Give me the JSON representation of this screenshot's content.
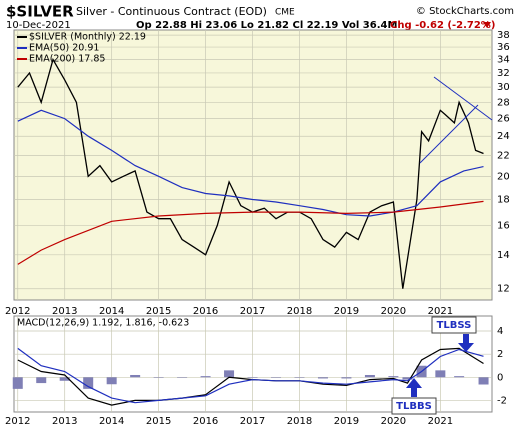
{
  "chart_data": [
    {
      "type": "line",
      "title": "$SILVER",
      "subtitle": "Silver - Continuous Contract (EOD)",
      "exchange": "CME",
      "date": "10-Dec-2021",
      "quote": "Op 22.88 Hi 23.06 Lo 21.82 Cl 22.19 Vol 36.4M",
      "change": "Chg -0.62 (-2.72%)",
      "source": "© StockCharts.com",
      "log_scale": true,
      "grid": true,
      "background": "#f7f7da",
      "xlim": [
        2011.92,
        2022.1
      ],
      "xticks": [
        2012,
        2013,
        2014,
        2015,
        2016,
        2017,
        2018,
        2019,
        2020,
        2021
      ],
      "ylim": [
        11.4,
        38.9
      ],
      "yticks": [
        12,
        14,
        16,
        18,
        20,
        22,
        24,
        26,
        28,
        30,
        32,
        34,
        36,
        38
      ],
      "series": [
        {
          "name": "$SILVER (Monthly) 22.19",
          "color": "#000000",
          "x": [
            2012.0,
            2012.25,
            2012.5,
            2012.75,
            2013.0,
            2013.25,
            2013.5,
            2013.75,
            2014.0,
            2014.25,
            2014.5,
            2014.75,
            2015.0,
            2015.25,
            2015.5,
            2015.75,
            2016.0,
            2016.25,
            2016.5,
            2016.75,
            2017.0,
            2017.25,
            2017.5,
            2017.75,
            2018.0,
            2018.25,
            2018.5,
            2018.75,
            2019.0,
            2019.25,
            2019.5,
            2019.75,
            2020.0,
            2020.2,
            2020.5,
            2020.6,
            2020.75,
            2021.0,
            2021.1,
            2021.3,
            2021.4,
            2021.6,
            2021.75,
            2021.92
          ],
          "values": [
            30,
            32,
            28,
            34,
            31,
            28,
            20,
            21,
            19.5,
            20,
            20.5,
            17,
            16.5,
            16.5,
            15,
            14.5,
            14,
            16,
            19.5,
            17.5,
            17,
            17.3,
            16.5,
            17,
            17,
            16.5,
            15,
            14.5,
            15.5,
            15,
            17,
            17.5,
            17.8,
            12,
            18,
            24.5,
            23.5,
            27,
            26.5,
            25.5,
            28,
            25.5,
            22.5,
            22.19
          ]
        },
        {
          "name": "EMA(50) 20.91",
          "color": "#1f2fbf",
          "x": [
            2012.0,
            2012.5,
            2013.0,
            2013.5,
            2014.0,
            2014.5,
            2015.0,
            2015.5,
            2016.0,
            2016.5,
            2017.0,
            2017.5,
            2018.0,
            2018.5,
            2019.0,
            2019.5,
            2020.0,
            2020.5,
            2021.0,
            2021.5,
            2021.92
          ],
          "values": [
            25.7,
            27,
            26,
            24,
            22.5,
            21,
            20,
            19,
            18.5,
            18.3,
            18,
            17.8,
            17.5,
            17.2,
            16.8,
            16.7,
            17,
            17.5,
            19.5,
            20.5,
            20.91
          ]
        },
        {
          "name": "EMA(200) 17.85",
          "color": "#c00000",
          "x": [
            2012.0,
            2012.5,
            2013.0,
            2014.0,
            2015.0,
            2016.0,
            2017.0,
            2018.0,
            2019.0,
            2020.0,
            2021.0,
            2021.92
          ],
          "values": [
            13.4,
            14.3,
            15,
            16.3,
            16.7,
            16.9,
            17,
            17,
            16.9,
            17,
            17.4,
            17.85
          ]
        }
      ]
    },
    {
      "type": "line",
      "title": "MACD(12,26,9) 1.192, 1.816, -0.623",
      "grid": true,
      "background": "#ffffff",
      "xlim": [
        2011.92,
        2022.1
      ],
      "xticks": [
        2012,
        2013,
        2014,
        2015,
        2016,
        2017,
        2018,
        2019,
        2020,
        2021
      ],
      "ylim": [
        -3.0,
        5.3
      ],
      "yticks": [
        -2,
        0,
        2,
        4
      ],
      "annotations": [
        "TLBSS",
        "TLBBS"
      ],
      "series": [
        {
          "name": "Histogram",
          "style": "histogram",
          "color": "#7f7fb5",
          "x": [
            2012.0,
            2012.5,
            2013.0,
            2013.5,
            2014.0,
            2014.5,
            2015.0,
            2015.5,
            2016.0,
            2016.5,
            2017.0,
            2017.5,
            2018.0,
            2018.5,
            2019.0,
            2019.5,
            2020.0,
            2020.3,
            2020.6,
            2021.0,
            2021.4,
            2021.92
          ],
          "values": [
            -1.0,
            -0.5,
            -0.3,
            -1.0,
            -0.6,
            0.2,
            0,
            0,
            0.1,
            0.6,
            0,
            0,
            0,
            -0.1,
            -0.1,
            0.2,
            0.1,
            -0.2,
            1.0,
            0.6,
            0.1,
            -0.623
          ]
        },
        {
          "name": "MACD",
          "color": "#000000",
          "x": [
            2012.0,
            2012.5,
            2013.0,
            2013.5,
            2014.0,
            2014.5,
            2015.0,
            2015.5,
            2016.0,
            2016.5,
            2017.0,
            2017.5,
            2018.0,
            2018.5,
            2019.0,
            2019.5,
            2020.0,
            2020.3,
            2020.6,
            2021.0,
            2021.4,
            2021.92
          ],
          "values": [
            1.5,
            0.5,
            0.2,
            -1.8,
            -2.4,
            -2.0,
            -2.0,
            -1.8,
            -1.5,
            0,
            -0.2,
            -0.3,
            -0.3,
            -0.6,
            -0.7,
            -0.2,
            -0.1,
            -0.5,
            1.5,
            2.4,
            2.5,
            1.192
          ]
        },
        {
          "name": "Signal",
          "color": "#1f2fbf",
          "x": [
            2012.0,
            2012.5,
            2013.0,
            2013.5,
            2014.0,
            2014.5,
            2015.0,
            2015.5,
            2016.0,
            2016.5,
            2017.0,
            2017.5,
            2018.0,
            2018.5,
            2019.0,
            2019.5,
            2020.0,
            2020.3,
            2020.6,
            2021.0,
            2021.4,
            2021.92
          ],
          "values": [
            2.5,
            1.0,
            0.5,
            -0.8,
            -1.8,
            -2.2,
            -2.0,
            -1.8,
            -1.6,
            -0.6,
            -0.2,
            -0.3,
            -0.3,
            -0.5,
            -0.6,
            -0.4,
            -0.2,
            -0.3,
            0.5,
            1.8,
            2.4,
            1.816
          ]
        }
      ]
    }
  ]
}
